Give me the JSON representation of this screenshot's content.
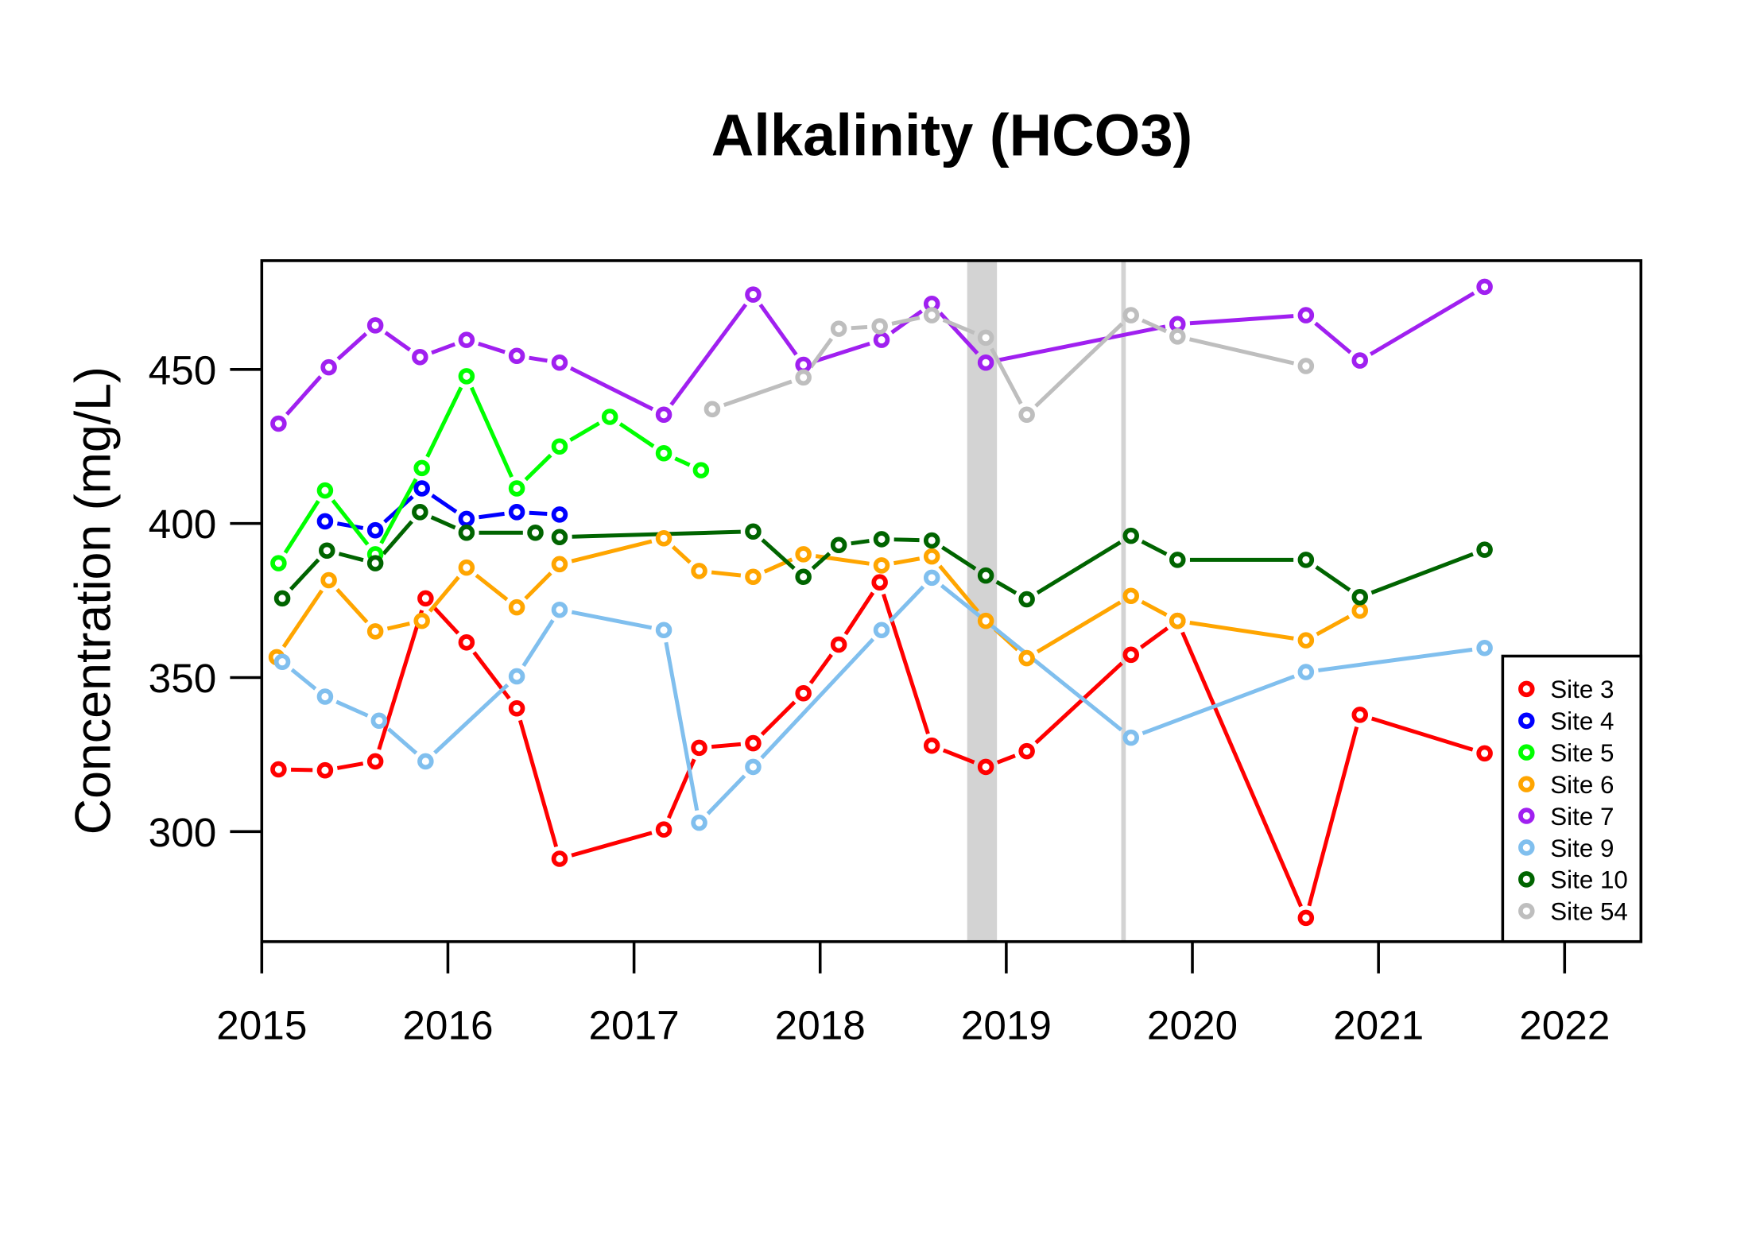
{
  "chart_data": {
    "type": "line",
    "title": "Alkalinity (HCO3)",
    "xlabel": "",
    "ylabel": "Concentration (mg/L)",
    "xlim": [
      2015,
      2022.41
    ],
    "ylim": [
      264.3,
      485.3
    ],
    "xticks": [
      2015,
      2016,
      2017,
      2018,
      2019,
      2020,
      2021,
      2022
    ],
    "yticks": [
      300,
      350,
      400,
      450
    ],
    "grid": false,
    "legend_position": "bottom-right",
    "shaded_band": [
      2018.79,
      2018.95
    ],
    "vertical_line": 2019.63,
    "shade_color": "#d3d3d3",
    "series": [
      {
        "name": "Site 3",
        "color": "#ff0000",
        "x": [
          2015.09,
          2015.34,
          2015.61,
          2015.88,
          2016.1,
          2016.37,
          2016.6,
          2017.16,
          2017.35,
          2017.64,
          2017.91,
          2018.1,
          2018.32,
          2018.6,
          2018.89,
          2019.11,
          2019.67,
          2019.92,
          2020.61,
          2020.9,
          2021.57
        ],
        "y": [
          320.2,
          319.9,
          322.8,
          375.7,
          361.4,
          340.0,
          291.2,
          300.7,
          327.2,
          328.7,
          344.9,
          360.7,
          380.9,
          327.9,
          321.0,
          326.1,
          357.4,
          368.4,
          272.0,
          337.9,
          325.4
        ]
      },
      {
        "name": "Site 4",
        "color": "#0000ff",
        "x": [
          2015.34,
          2015.61,
          2015.86,
          2016.1,
          2016.37,
          2016.6
        ],
        "y": [
          400.7,
          397.8,
          411.4,
          401.5,
          403.7,
          402.9
        ]
      },
      {
        "name": "Site 5",
        "color": "#00ff00",
        "x": [
          2015.09,
          2015.34,
          2015.61,
          2015.86,
          2016.1,
          2016.37,
          2016.6,
          2016.87,
          2017.16,
          2017.36
        ],
        "y": [
          387.1,
          410.7,
          390.0,
          418.0,
          447.8,
          411.4,
          425.0,
          434.6,
          422.8,
          417.3
        ]
      },
      {
        "name": "Site 6",
        "color": "#ffa500",
        "x": [
          2015.08,
          2015.36,
          2015.61,
          2015.86,
          2016.1,
          2016.37,
          2016.6,
          2017.16,
          2017.35,
          2017.64,
          2017.91,
          2018.33,
          2018.6,
          2018.89,
          2019.11,
          2019.67,
          2019.92,
          2020.61,
          2020.9
        ],
        "y": [
          356.6,
          381.6,
          365.0,
          368.4,
          385.7,
          372.8,
          386.8,
          395.2,
          384.6,
          382.7,
          390.0,
          386.4,
          389.3,
          368.4,
          356.3,
          376.5,
          368.4,
          362.1,
          371.7
        ]
      },
      {
        "name": "Site 7",
        "color": "#a020f0",
        "x": [
          2015.09,
          2015.36,
          2015.61,
          2015.85,
          2016.1,
          2016.37,
          2016.6,
          2017.16,
          2017.64,
          2017.91,
          2018.33,
          2018.6,
          2018.89,
          2019.92,
          2020.61,
          2020.9,
          2021.57
        ],
        "y": [
          432.4,
          450.7,
          464.3,
          454.0,
          459.6,
          454.4,
          452.2,
          435.3,
          474.3,
          451.5,
          459.6,
          471.3,
          452.2,
          464.7,
          467.6,
          452.9,
          476.8
        ]
      },
      {
        "name": "Site 9",
        "color": "#80bfee",
        "x": [
          2015.11,
          2015.34,
          2015.63,
          2015.88,
          2016.37,
          2016.6,
          2017.16,
          2017.35,
          2017.64,
          2018.33,
          2018.6,
          2019.67,
          2020.61,
          2021.57
        ],
        "y": [
          355.1,
          343.8,
          336.0,
          322.8,
          350.4,
          372.0,
          365.4,
          302.9,
          321.0,
          365.4,
          382.4,
          330.5,
          351.8,
          359.6
        ]
      },
      {
        "name": "Site 10",
        "color": "#006400",
        "x": [
          2015.11,
          2015.35,
          2015.61,
          2015.85,
          2016.1,
          2016.47,
          2016.6,
          2017.64,
          2017.91,
          2018.1,
          2018.33,
          2018.6,
          2018.89,
          2019.11,
          2019.67,
          2019.92,
          2020.61,
          2020.9,
          2021.57
        ],
        "y": [
          375.7,
          391.2,
          387.1,
          403.7,
          397.0,
          397.0,
          395.6,
          397.4,
          382.7,
          393.0,
          394.9,
          394.5,
          383.1,
          375.4,
          396.0,
          388.2,
          388.2,
          376.1,
          391.5
        ]
      },
      {
        "name": "Site 54",
        "color": "#bebebe",
        "x": [
          2017.42,
          2017.91,
          2018.1,
          2018.32,
          2018.6,
          2018.89,
          2019.11,
          2019.67,
          2019.92,
          2020.61
        ],
        "y": [
          437.1,
          447.4,
          463.2,
          464.0,
          467.6,
          460.3,
          435.3,
          467.6,
          460.7,
          451.1
        ]
      }
    ]
  }
}
